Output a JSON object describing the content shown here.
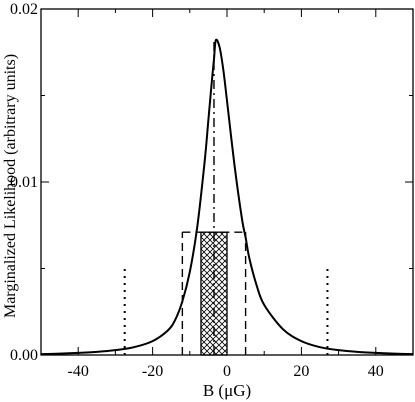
{
  "chart_data": {
    "type": "line",
    "title": "",
    "xlabel": "B (μG)",
    "ylabel": "Marginalized Likelihood (arbitrary units)",
    "xlim": [
      -50,
      50
    ],
    "ylim": [
      0,
      0.02
    ],
    "xticks": [
      -40,
      -20,
      0,
      20,
      40
    ],
    "xtick_labels": [
      "-40",
      "-20",
      "0",
      "20",
      "40"
    ],
    "yticks": [
      0,
      0.01,
      0.02
    ],
    "ytick_labels": [
      "0.00",
      "0.01",
      "0.02"
    ],
    "grid": false,
    "legend": "none",
    "series": [
      {
        "style": "solid",
        "x": [
          -50,
          -45,
          -40,
          -35,
          -30,
          -25,
          -20,
          -16,
          -14,
          -12,
          -10,
          -8,
          -6,
          -5,
          -4,
          -3.5,
          -3,
          -2,
          -1,
          0,
          2,
          4,
          5,
          6,
          8,
          10,
          15,
          20,
          25,
          30,
          35,
          40,
          45,
          50
        ],
        "y": [
          5e-05,
          8e-05,
          0.00012,
          0.00018,
          0.00028,
          0.00045,
          0.0008,
          0.0014,
          0.002,
          0.0031,
          0.0048,
          0.0074,
          0.0112,
          0.0136,
          0.016,
          0.0171,
          0.0182,
          0.0178,
          0.0165,
          0.0147,
          0.011,
          0.0079,
          0.0068,
          0.0056,
          0.004,
          0.0029,
          0.0015,
          0.0008,
          0.00045,
          0.00028,
          0.00018,
          0.00012,
          8e-05,
          5e-05
        ]
      }
    ],
    "annotations": [
      {
        "kind": "dash-dot vertical",
        "x": -3.5,
        "y": [
          0,
          0.0182
        ]
      },
      {
        "kind": "dashed vertical",
        "x": -12,
        "y": [
          0,
          0.0071
        ]
      },
      {
        "kind": "dashed vertical",
        "x": 5,
        "y": [
          0,
          0.0071
        ]
      },
      {
        "kind": "dashed horizontal",
        "x": [
          -12,
          5
        ],
        "y": 0.0071
      },
      {
        "kind": "dotted vertical",
        "x": -27.5,
        "y": [
          0,
          0.0052
        ]
      },
      {
        "kind": "dotted vertical",
        "x": 27,
        "y": [
          0,
          0.0052
        ]
      },
      {
        "kind": "cross-hatched band",
        "x": [
          -7,
          0
        ],
        "y": [
          0,
          0.0071
        ]
      }
    ]
  }
}
